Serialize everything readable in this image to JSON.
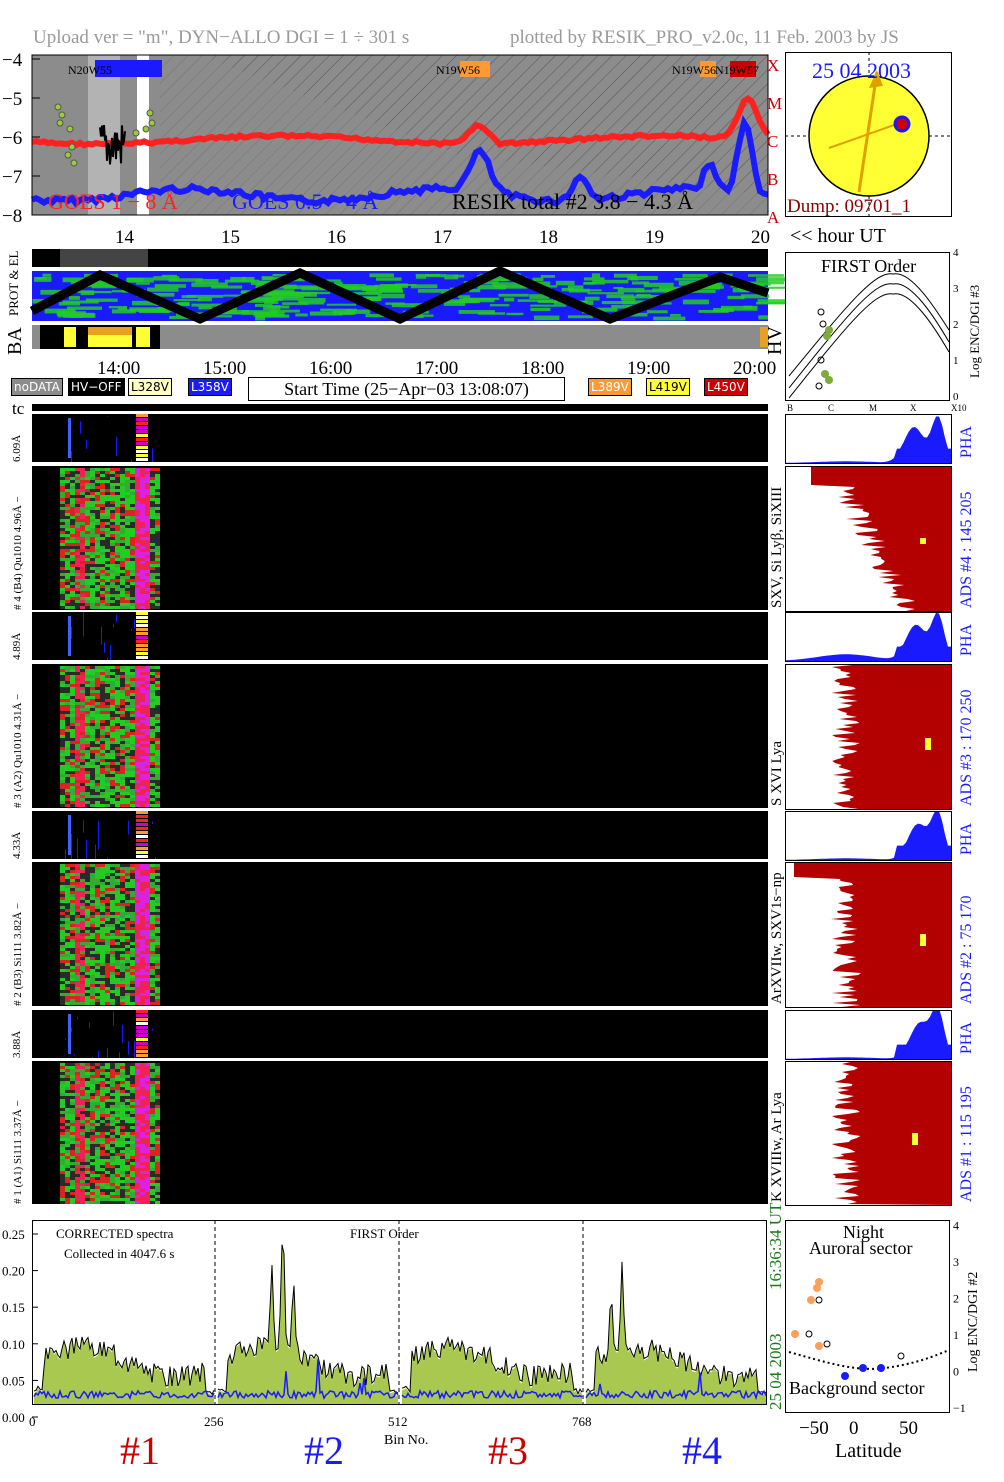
{
  "header": {
    "left": "Upload ver = \"m\", DYN−ALLO DGI =   1 ÷ 301 s",
    "right": "plotted by RESIK_PRO_v2.0c, 11 Feb. 2003 by JS"
  },
  "goes": {
    "y_ticks": [
      "−4",
      "−5",
      "−6",
      "−7",
      "−8"
    ],
    "classes": [
      "X",
      "M",
      "C",
      "B",
      "A"
    ],
    "legend_goes18": "GOES 1 − 8 Å",
    "legend_goes054": "GOES 0.5 − 4 Å",
    "legend_resik": "RESIK total #2  3.8 − 4.3 Å",
    "regions": [
      "N20W55",
      "N19W56",
      "N19W56",
      "N19W57"
    ],
    "hour_ticks": [
      "14",
      "15",
      "16",
      "17",
      "18",
      "19",
      "20"
    ],
    "hour_label": "<< hour UT",
    "colors": {
      "goes18": "#ff2020",
      "goes054": "#1a1aff",
      "shade": "#8c8c8c"
    }
  },
  "sun": {
    "date": "25 04 2003",
    "dump": "Dump: 09701_1",
    "color": "#ffff33"
  },
  "orbit_panel": {
    "label_prot": "PROT & EL",
    "label_ba": "BA",
    "label_hv": "HV",
    "time_ticks": [
      "14:00",
      "15:00",
      "16:00",
      "17:00",
      "18:00",
      "19:00",
      "20:00"
    ]
  },
  "legend_badges": [
    {
      "label": "noDATA",
      "bg": "#8c8c8c",
      "fg": "#ffffff"
    },
    {
      "label": "HV−OFF",
      "bg": "#000000",
      "fg": "#ffffff"
    },
    {
      "label": "L328V",
      "bg": "#ffffc0",
      "fg": "#000000"
    },
    {
      "label": "L358V",
      "bg": "#1a1aff",
      "fg": "#ffffff"
    },
    {
      "label": "L389V",
      "bg": "#ff9933",
      "fg": "#ffffff"
    },
    {
      "label": "L419V",
      "bg": "#ffff33",
      "fg": "#000000"
    },
    {
      "label": "L450V",
      "bg": "#cc0000",
      "fg": "#ffffff"
    }
  ],
  "start_time": "Start Time (25−Apr−03 13:08:07)",
  "first_order": {
    "title": "FIRST Order",
    "y_label": "Log ENC/DGI #3",
    "y_ticks": [
      "0",
      "1",
      "2",
      "3",
      "4"
    ],
    "x_ticks": [
      "B",
      "C",
      "M",
      "X",
      "X10"
    ]
  },
  "tc_label": "tc",
  "channels": [
    {
      "left_pha": "6.09Å",
      "left": "# 4 (B4)  Qu1010  4.96Å −",
      "right_label": "SXV, Si Lyβ, SiXIII",
      "ads": "ADS #4 :   145  205",
      "pha": "PHA"
    },
    {
      "left_pha": "4.89Å",
      "left": "# 3 (A2)  Qu1010  4.31Å −",
      "right_label": "S XVI Lya",
      "ads": "ADS #3 :   170  250",
      "pha": "PHA"
    },
    {
      "left_pha": "4.33Å",
      "left": "# 2 (B3)  Si111  3.82Å −",
      "right_label": "ArXVIIw, SXV1s−np",
      "ads": "ADS #2 :   75  170",
      "pha": "PHA"
    },
    {
      "left_pha": "3.88Å",
      "left": "# 1 (A1)  Si111  3.37Å −",
      "right_label": "K XVIIIw, Ar Lya",
      "ads": "ADS #1 :   115  195",
      "pha": "PHA"
    }
  ],
  "spectrum": {
    "title1": "CORRECTED spectra",
    "title2": "Collected in  4047.6 s",
    "title_order": "FIRST Order",
    "y_ticks": [
      "0.25",
      "0.20",
      "0.15",
      "0.10",
      "0.05",
      "0.00"
    ],
    "x_ticks": [
      "0",
      "256",
      "512",
      "768"
    ],
    "x_label": "Bin No.",
    "date_side": "25 04 2003",
    "time_side": "16:36:34 UT",
    "section_labels": [
      "#1",
      "#2",
      "#3",
      "#4"
    ],
    "section_colors": [
      "#cc0000",
      "#1a1aff",
      "#cc0000",
      "#1a1aff"
    ]
  },
  "night_panel": {
    "title1": "Night",
    "title2": "Auroral sector",
    "bottom": "Background sector",
    "x_label": "Latitude",
    "x_ticks": [
      "−50",
      "0",
      "50"
    ],
    "y_label": "Log ENC/DGI #2",
    "y_ticks": [
      "−1",
      "0",
      "1",
      "2",
      "3",
      "4"
    ]
  }
}
